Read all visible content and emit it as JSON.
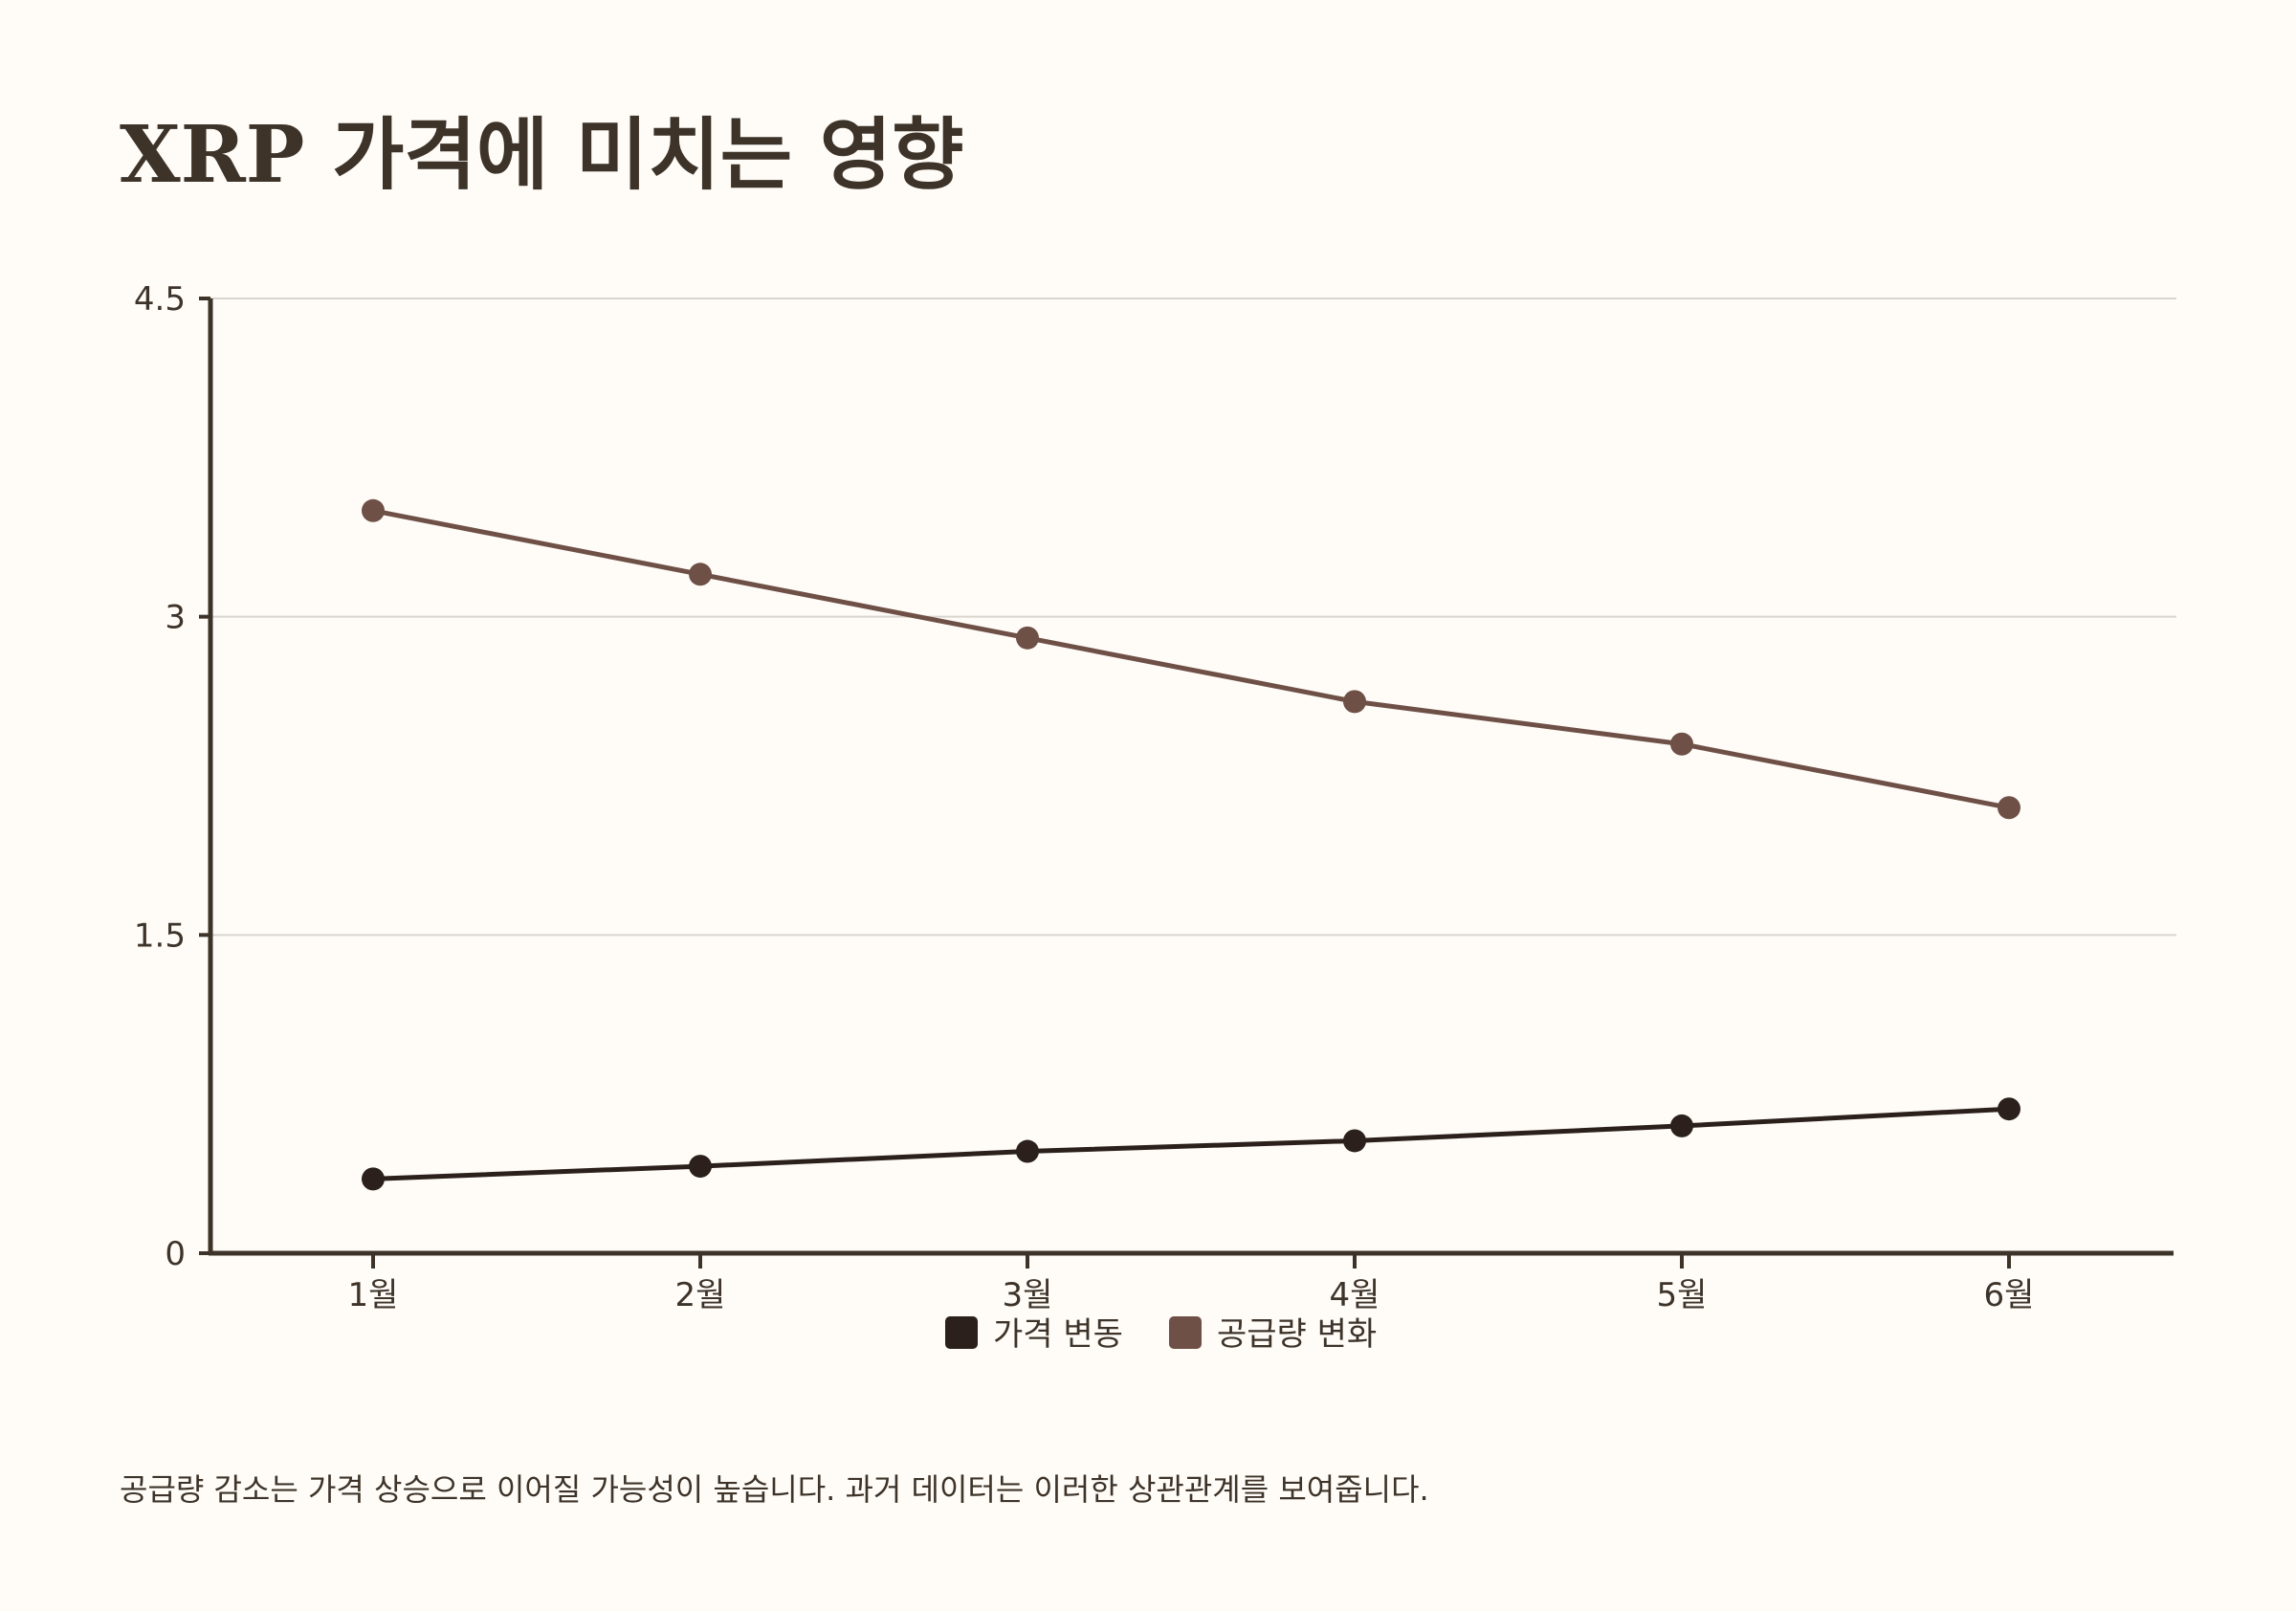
{
  "title": "XRP 가격에 미치는 영향",
  "caption": "공급량 감소는 가격 상승으로 이어질 가능성이 높습니다. 과거 데이터는 이러한 상관관계를 보여줍니다.",
  "chart_data": {
    "type": "line",
    "title": "",
    "xlabel": "",
    "ylabel": "",
    "categories": [
      "1월",
      "2월",
      "3월",
      "4월",
      "5월",
      "6월"
    ],
    "ylim": [
      0,
      4.5
    ],
    "yticks": [
      "0",
      "1.5",
      "3",
      "4.5"
    ],
    "grid": true,
    "legend_position": "bottom-center",
    "series": [
      {
        "name": "가격 변동",
        "color": "#2b201b",
        "values": [
          0.35,
          0.41,
          0.48,
          0.53,
          0.6,
          0.68
        ]
      },
      {
        "name": "공급량 변화",
        "color": "#6e5047",
        "values": [
          3.5,
          3.2,
          2.9,
          2.6,
          2.4,
          2.1
        ]
      }
    ]
  }
}
